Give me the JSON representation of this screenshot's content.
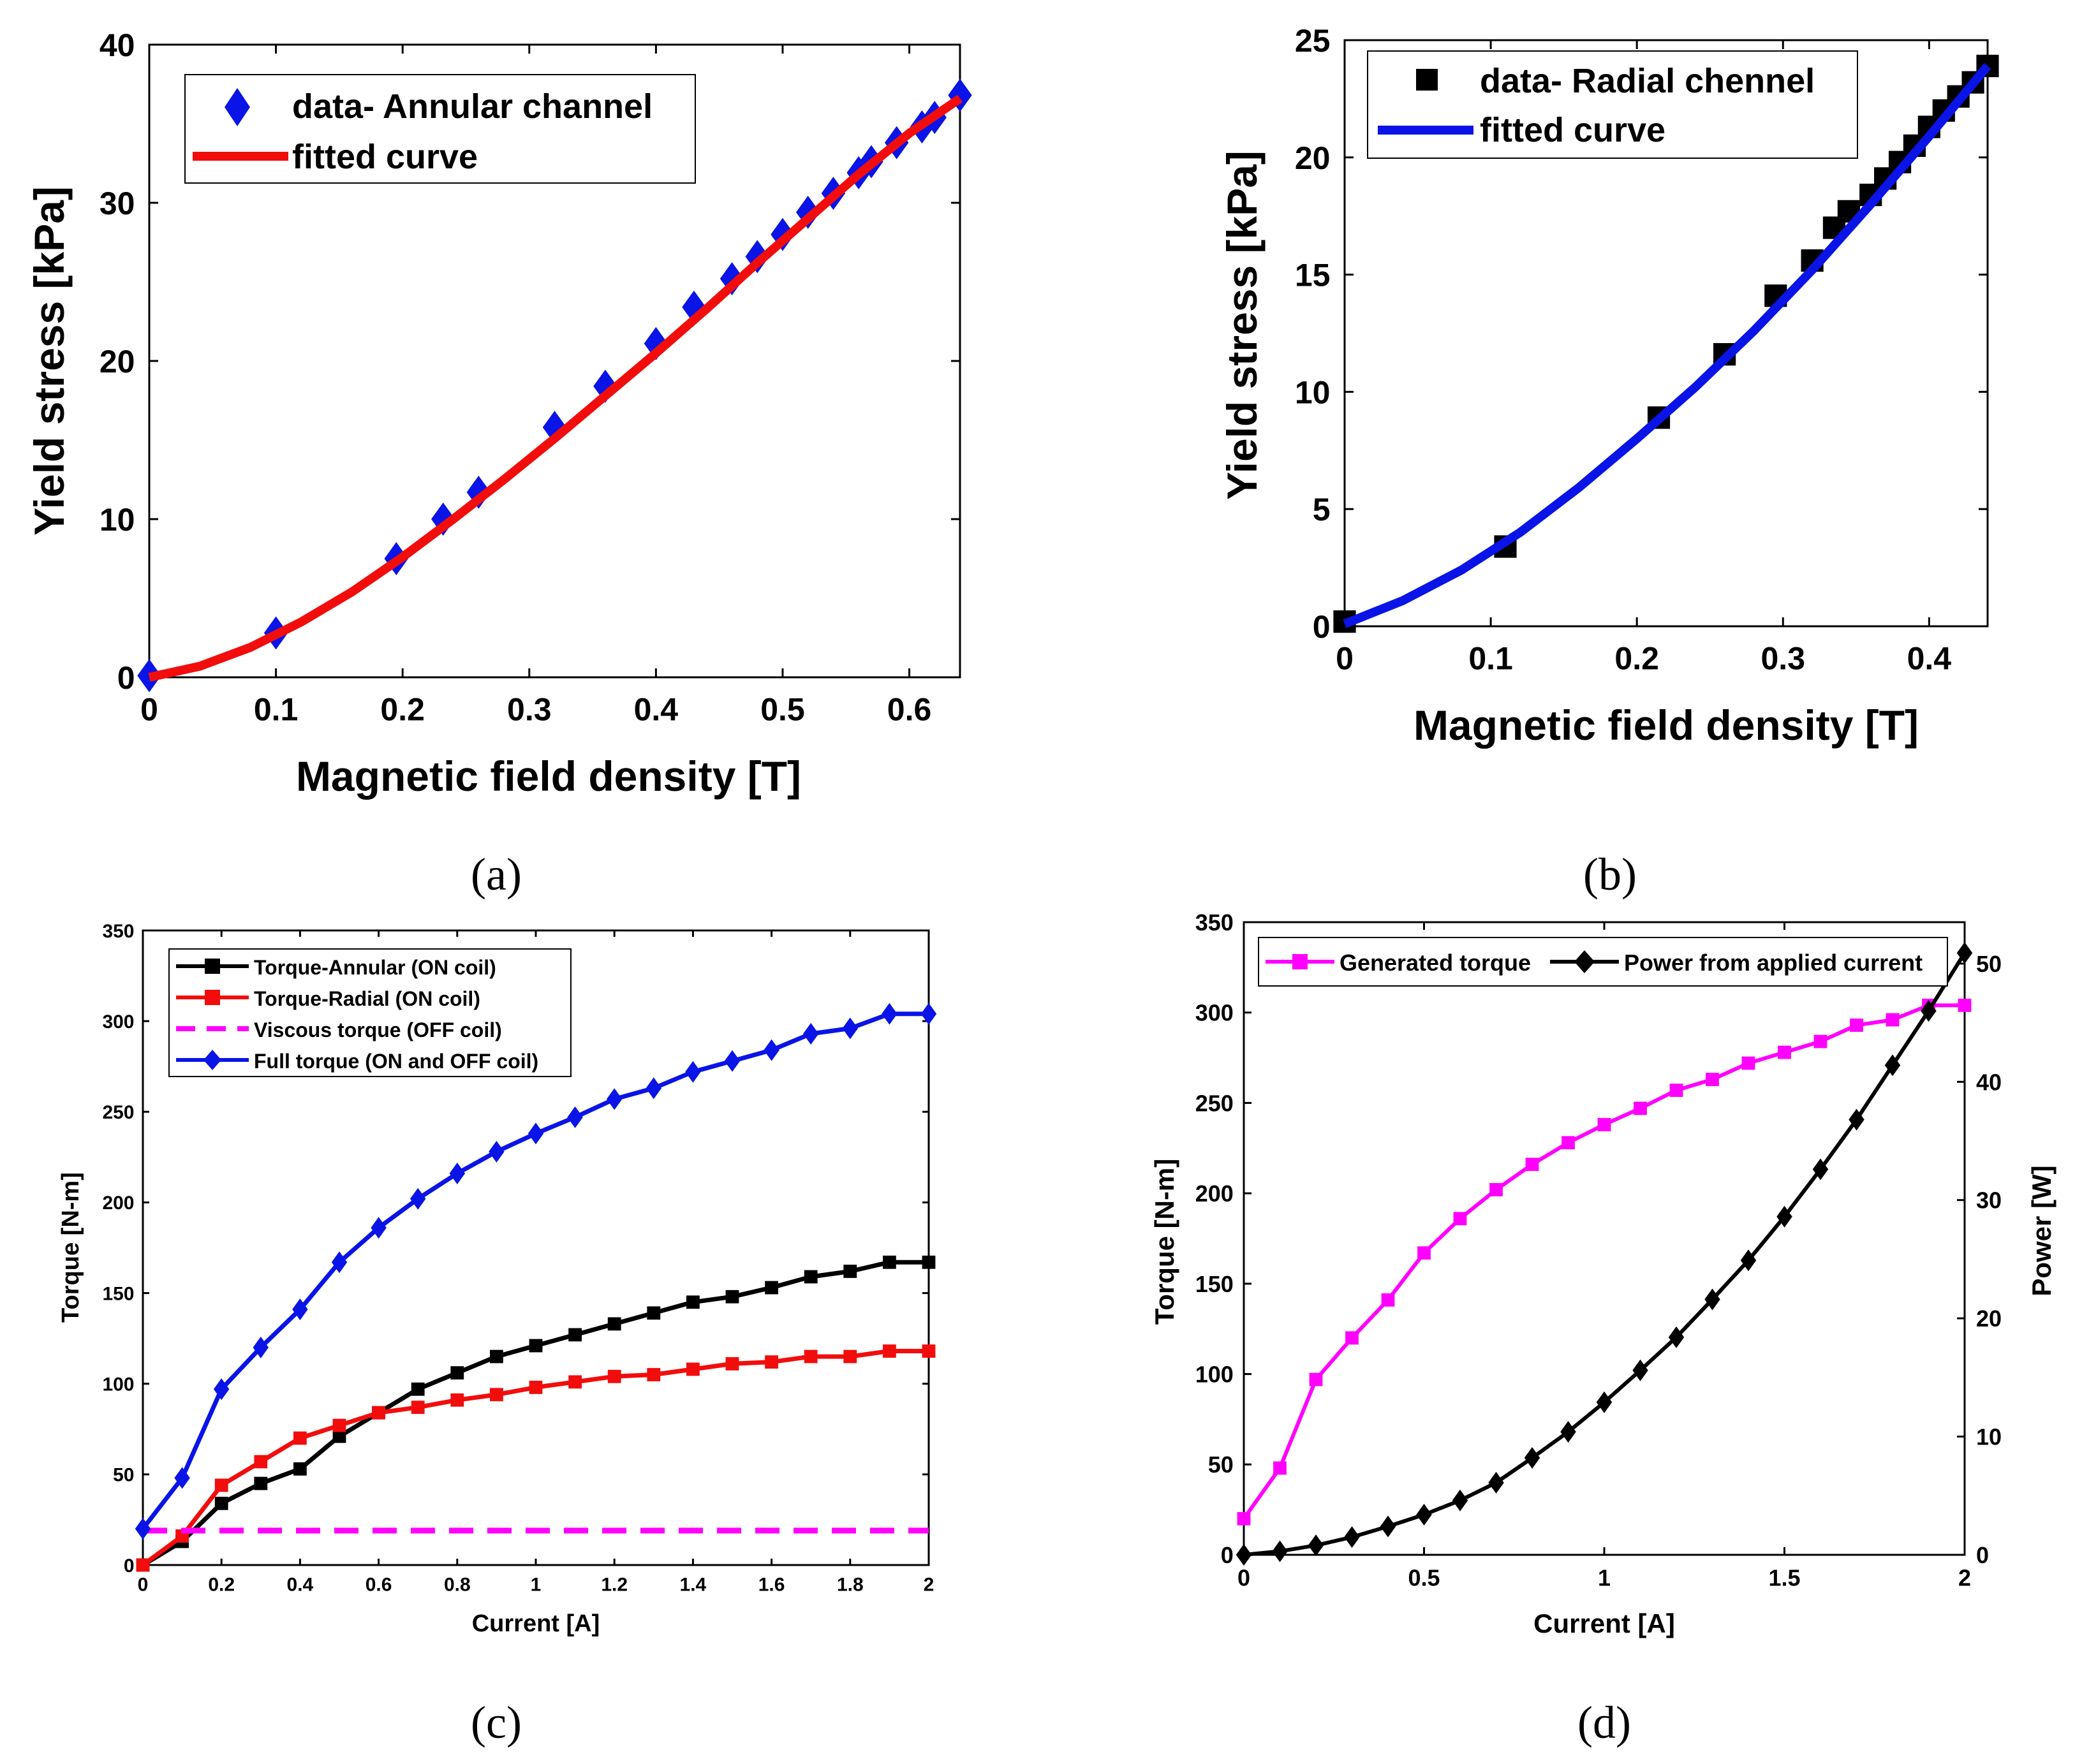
{
  "colors": {
    "blue": "#0a14e6",
    "red": "#f20d0d",
    "black": "#000000",
    "magenta": "#ff00ff"
  },
  "chart_data": [
    {
      "id": "a",
      "type": "scatter",
      "panel_label": "(a)",
      "xlabel": "Magnetic field density [T]",
      "ylabel": "Yield stress [kPa]",
      "xlim": [
        0,
        0.64
      ],
      "ylim": [
        0,
        40
      ],
      "xticks": [
        0,
        0.1,
        0.2,
        0.3,
        0.4,
        0.5,
        0.6
      ],
      "yticks": [
        0,
        10,
        20,
        30,
        40
      ],
      "legend_position": "top-left",
      "series": [
        {
          "name": "data- Annular channel",
          "kind": "markers",
          "marker": "diamond",
          "color": "#0a14e6",
          "x": [
            0,
            0.1,
            0.195,
            0.232,
            0.26,
            0.32,
            0.36,
            0.4,
            0.43,
            0.46,
            0.48,
            0.5,
            0.52,
            0.54,
            0.56,
            0.57,
            0.59,
            0.61,
            0.62,
            0.64
          ],
          "y": [
            0.1,
            2.8,
            7.5,
            10.0,
            11.7,
            15.8,
            18.4,
            21.1,
            23.4,
            25.2,
            26.6,
            28.0,
            29.4,
            30.6,
            31.9,
            32.6,
            33.8,
            34.8,
            35.4,
            36.8
          ]
        },
        {
          "name": "fitted curve",
          "kind": "line",
          "color": "#f20d0d",
          "x": [
            0,
            0.04,
            0.08,
            0.12,
            0.16,
            0.2,
            0.24,
            0.28,
            0.32,
            0.36,
            0.4,
            0.44,
            0.48,
            0.52,
            0.56,
            0.6,
            0.64
          ],
          "y": [
            0,
            0.7,
            1.9,
            3.5,
            5.4,
            7.6,
            10.0,
            12.5,
            15.1,
            17.8,
            20.5,
            23.3,
            26.2,
            29.0,
            31.8,
            34.4,
            36.6
          ]
        }
      ]
    },
    {
      "id": "b",
      "type": "scatter",
      "panel_label": "(b)",
      "xlabel": "Magnetic field density [T]",
      "ylabel": "Yield stress [kPa]",
      "xlim": [
        0,
        0.44
      ],
      "ylim": [
        0,
        25
      ],
      "xticks": [
        0,
        0.1,
        0.2,
        0.3,
        0.4
      ],
      "yticks": [
        0,
        5,
        10,
        15,
        20,
        25
      ],
      "legend_position": "top-left",
      "series": [
        {
          "name": "data- Radial chennel",
          "kind": "markers",
          "marker": "square",
          "color": "#000000",
          "x": [
            0,
            0.11,
            0.215,
            0.26,
            0.295,
            0.32,
            0.335,
            0.345,
            0.36,
            0.37,
            0.38,
            0.39,
            0.4,
            0.41,
            0.42,
            0.43,
            0.44
          ],
          "y": [
            0.2,
            3.4,
            8.9,
            11.6,
            14.1,
            15.6,
            17.0,
            17.7,
            18.4,
            19.1,
            19.8,
            20.5,
            21.3,
            22.0,
            22.6,
            23.2,
            23.9
          ]
        },
        {
          "name": "fitted curve",
          "kind": "line",
          "color": "#0a14e6",
          "x": [
            0,
            0.04,
            0.08,
            0.12,
            0.16,
            0.2,
            0.24,
            0.28,
            0.32,
            0.36,
            0.4,
            0.44
          ],
          "y": [
            0.1,
            1.1,
            2.4,
            4.0,
            5.9,
            8.0,
            10.2,
            12.6,
            15.2,
            18.0,
            20.9,
            23.9
          ]
        }
      ]
    },
    {
      "id": "c",
      "type": "line",
      "panel_label": "(c)",
      "xlabel": "Current [A]",
      "ylabel": "Torque [N-m]",
      "xlim": [
        0,
        2
      ],
      "ylim": [
        0,
        350
      ],
      "xticks": [
        0,
        0.2,
        0.4,
        0.6,
        0.8,
        1,
        1.2,
        1.4,
        1.6,
        1.8,
        2
      ],
      "yticks": [
        0,
        50,
        100,
        150,
        200,
        250,
        300,
        350
      ],
      "legend_position": "top-left",
      "x": [
        0,
        0.1,
        0.2,
        0.3,
        0.4,
        0.5,
        0.6,
        0.7,
        0.8,
        0.9,
        1.0,
        1.1,
        1.2,
        1.3,
        1.4,
        1.5,
        1.6,
        1.7,
        1.8,
        1.9,
        2.0
      ],
      "series": [
        {
          "name": "Torque-Annular (ON coil)",
          "marker": "square",
          "color": "#000000",
          "values": [
            0,
            13,
            34,
            45,
            53,
            71,
            84,
            97,
            106,
            115,
            121,
            127,
            133,
            139,
            145,
            148,
            153,
            159,
            162,
            167,
            167
          ]
        },
        {
          "name": "Torque-Radial (ON coil)",
          "marker": "square",
          "color": "#f20d0d",
          "values": [
            0,
            16,
            44,
            57,
            70,
            77,
            84,
            87,
            91,
            94,
            98,
            101,
            104,
            105,
            108,
            111,
            112,
            115,
            115,
            118,
            118
          ]
        },
        {
          "name": "Viscous torque (OFF coil)",
          "marker": "none",
          "dashed": true,
          "color": "#ff00ff",
          "values": [
            19,
            19,
            19,
            19,
            19,
            19,
            19,
            19,
            19,
            19,
            19,
            19,
            19,
            19,
            19,
            19,
            19,
            19,
            19,
            19,
            19
          ]
        },
        {
          "name": "Full torque (ON and OFF coil)",
          "marker": "diamond",
          "color": "#0a14e6",
          "values": [
            20,
            48,
            97,
            120,
            141,
            167,
            186,
            202,
            216,
            228,
            238,
            247,
            257,
            263,
            272,
            278,
            284,
            293,
            296,
            304,
            304
          ]
        }
      ]
    },
    {
      "id": "d",
      "type": "line",
      "panel_label": "(d)",
      "xlabel": "Current [A]",
      "ylabel": "Torque [N-m]",
      "ylabel_right": "Power [W]",
      "xlim": [
        0,
        2
      ],
      "ylim": [
        0,
        350
      ],
      "ylim_right": [
        0,
        53.5
      ],
      "xticks": [
        0,
        0.5,
        1,
        1.5,
        2
      ],
      "yticks": [
        0,
        50,
        100,
        150,
        200,
        250,
        300,
        350
      ],
      "yticks_right": [
        0,
        10,
        20,
        30,
        40,
        50
      ],
      "legend_position": "top (horizontal)",
      "x": [
        0,
        0.1,
        0.2,
        0.3,
        0.4,
        0.5,
        0.6,
        0.7,
        0.8,
        0.9,
        1.0,
        1.1,
        1.2,
        1.3,
        1.4,
        1.5,
        1.6,
        1.7,
        1.8,
        1.9,
        2.0
      ],
      "series": [
        {
          "name": "Generated torque",
          "axis": "left",
          "marker": "square",
          "color": "#ff00ff",
          "values": [
            20,
            48,
            97,
            120,
            141,
            167,
            186,
            202,
            216,
            228,
            238,
            247,
            257,
            263,
            272,
            278,
            284,
            293,
            296,
            304,
            304
          ]
        },
        {
          "name": "Power from applied current",
          "axis": "right",
          "marker": "diamond",
          "color": "#000000",
          "values": [
            0.0,
            0.3,
            0.8,
            1.5,
            2.4,
            3.4,
            4.6,
            6.1,
            8.2,
            10.4,
            12.9,
            15.6,
            18.4,
            21.6,
            24.9,
            28.6,
            32.6,
            36.8,
            41.4,
            46.0,
            50.9
          ]
        }
      ]
    }
  ]
}
